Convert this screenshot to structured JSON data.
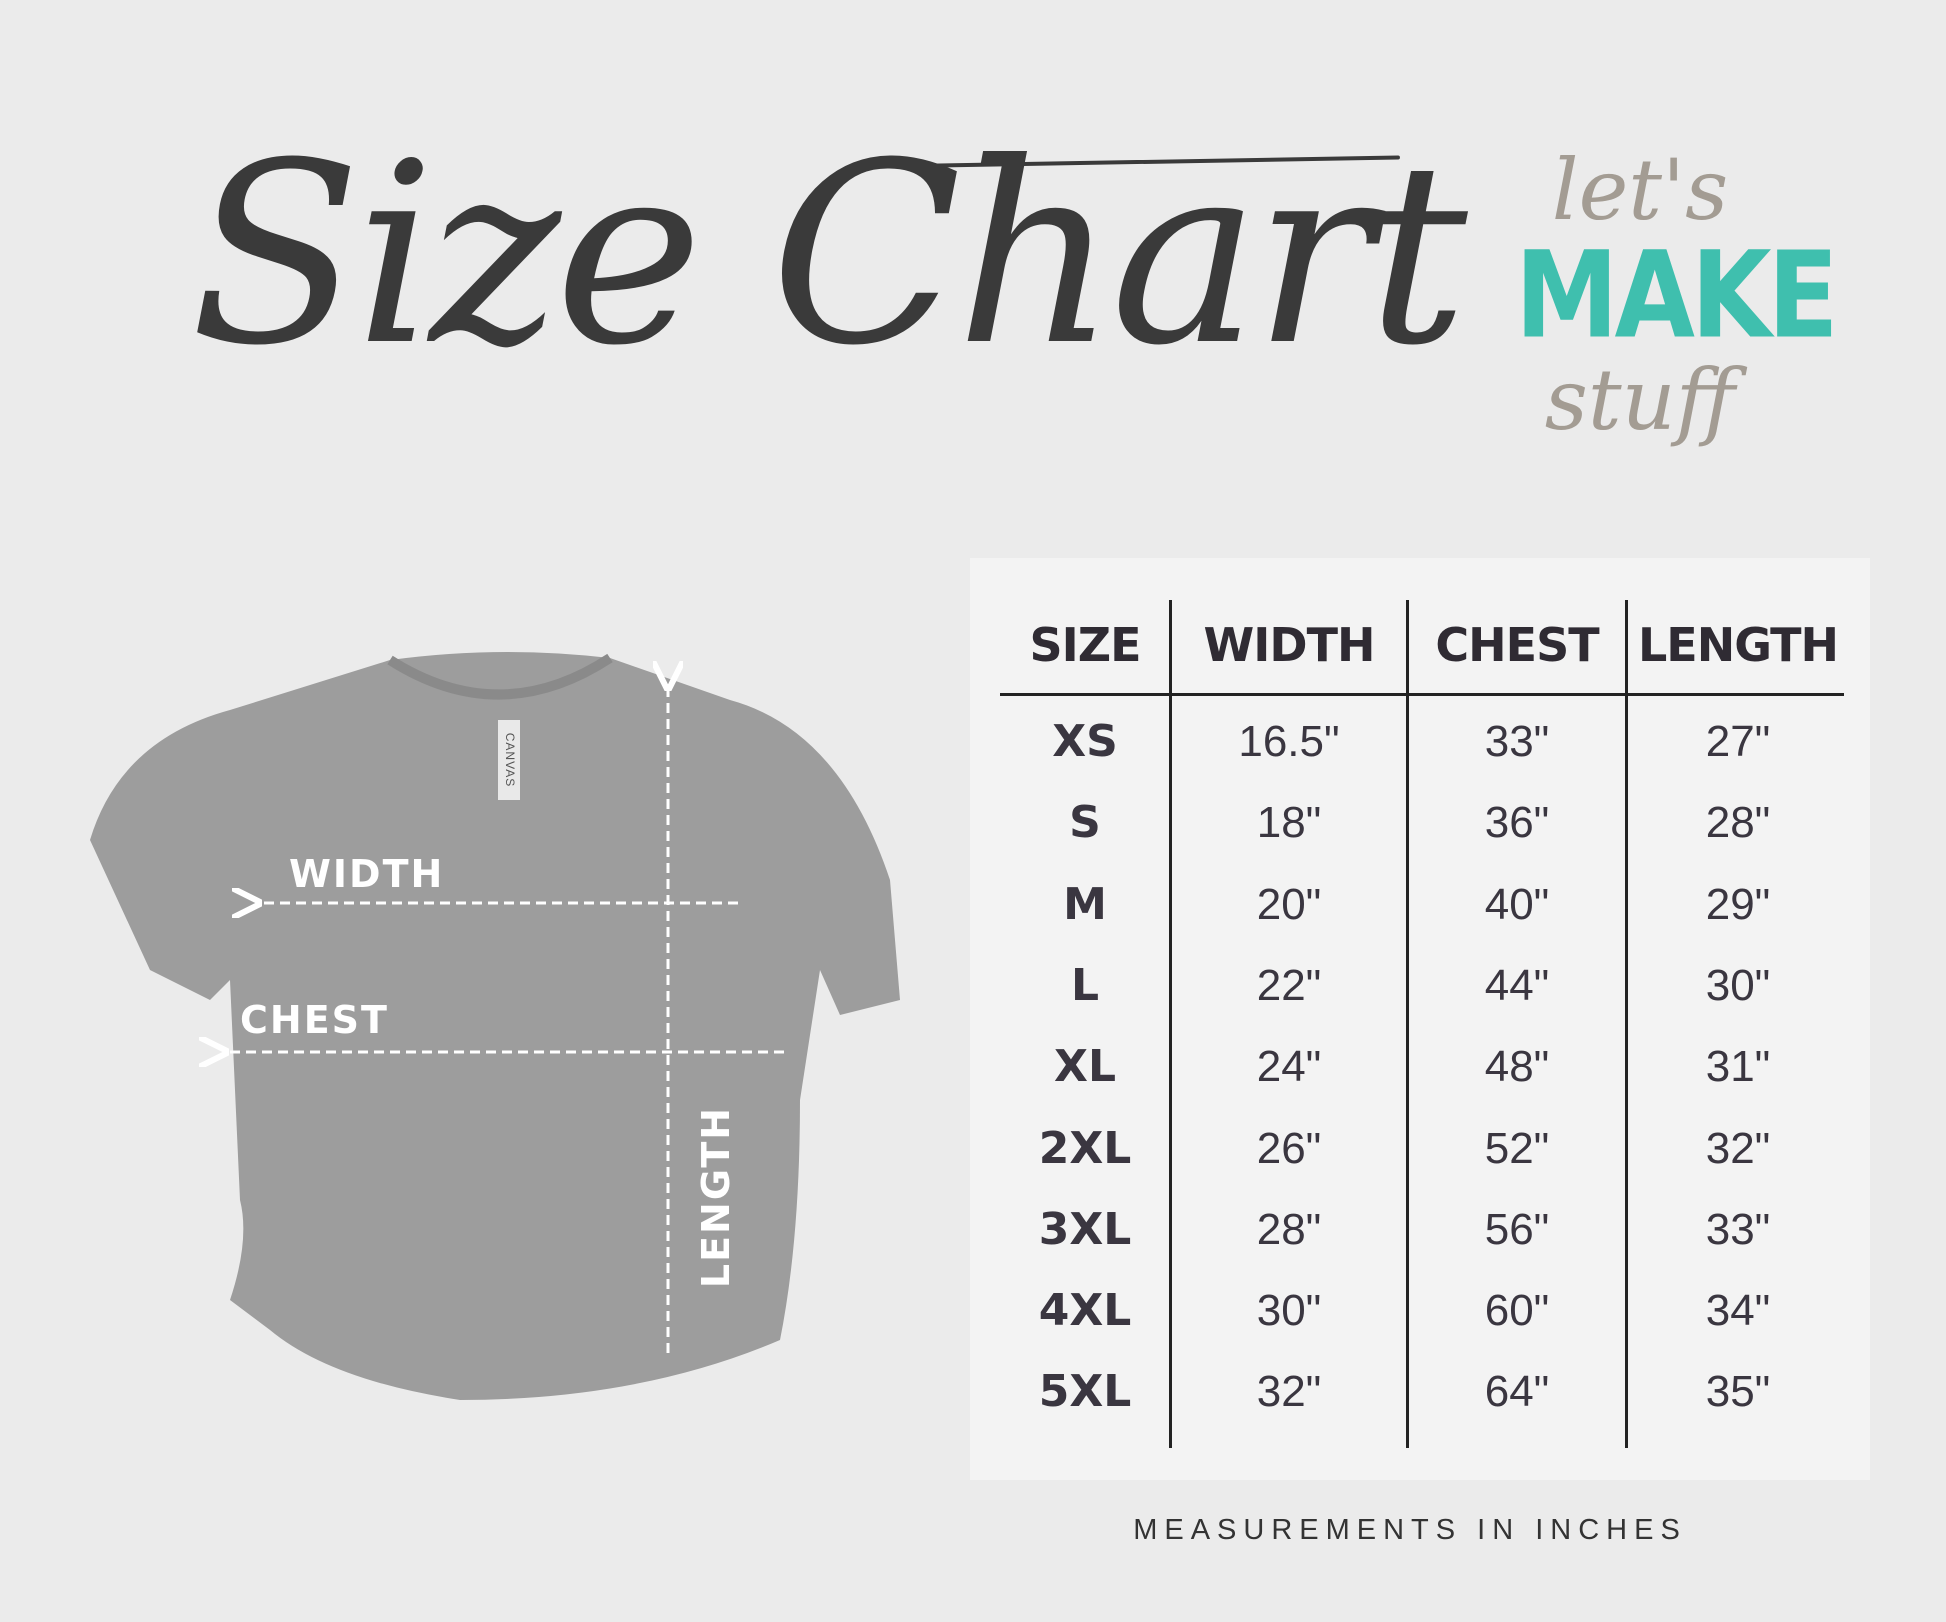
{
  "title": "Size Chart",
  "logo": {
    "line1": "let's",
    "line2": "MAKE",
    "line3": "stuff",
    "accent_color": "#3fbfae",
    "script_color": "#a39c93"
  },
  "shirt": {
    "labels": {
      "width": "WIDTH",
      "chest": "CHEST",
      "length": "LENGTH"
    },
    "tag_text": "CANVAS",
    "color": "#9a9a9a"
  },
  "table": {
    "headers": [
      "SIZE",
      "WIDTH",
      "CHEST",
      "LENGTH"
    ],
    "rows": [
      [
        "XS",
        "16.5\"",
        "33\"",
        "27\""
      ],
      [
        "S",
        "18\"",
        "36\"",
        "28\""
      ],
      [
        "M",
        "20\"",
        "40\"",
        "29\""
      ],
      [
        "L",
        "22\"",
        "44\"",
        "30\""
      ],
      [
        "XL",
        "24\"",
        "48\"",
        "31\""
      ],
      [
        "2XL",
        "26\"",
        "52\"",
        "32\""
      ],
      [
        "3XL",
        "28\"",
        "56\"",
        "33\""
      ],
      [
        "4XL",
        "30\"",
        "60\"",
        "34\""
      ],
      [
        "5XL",
        "32\"",
        "64\"",
        "35\""
      ]
    ]
  },
  "footer": "MEASUREMENTS IN INCHES"
}
